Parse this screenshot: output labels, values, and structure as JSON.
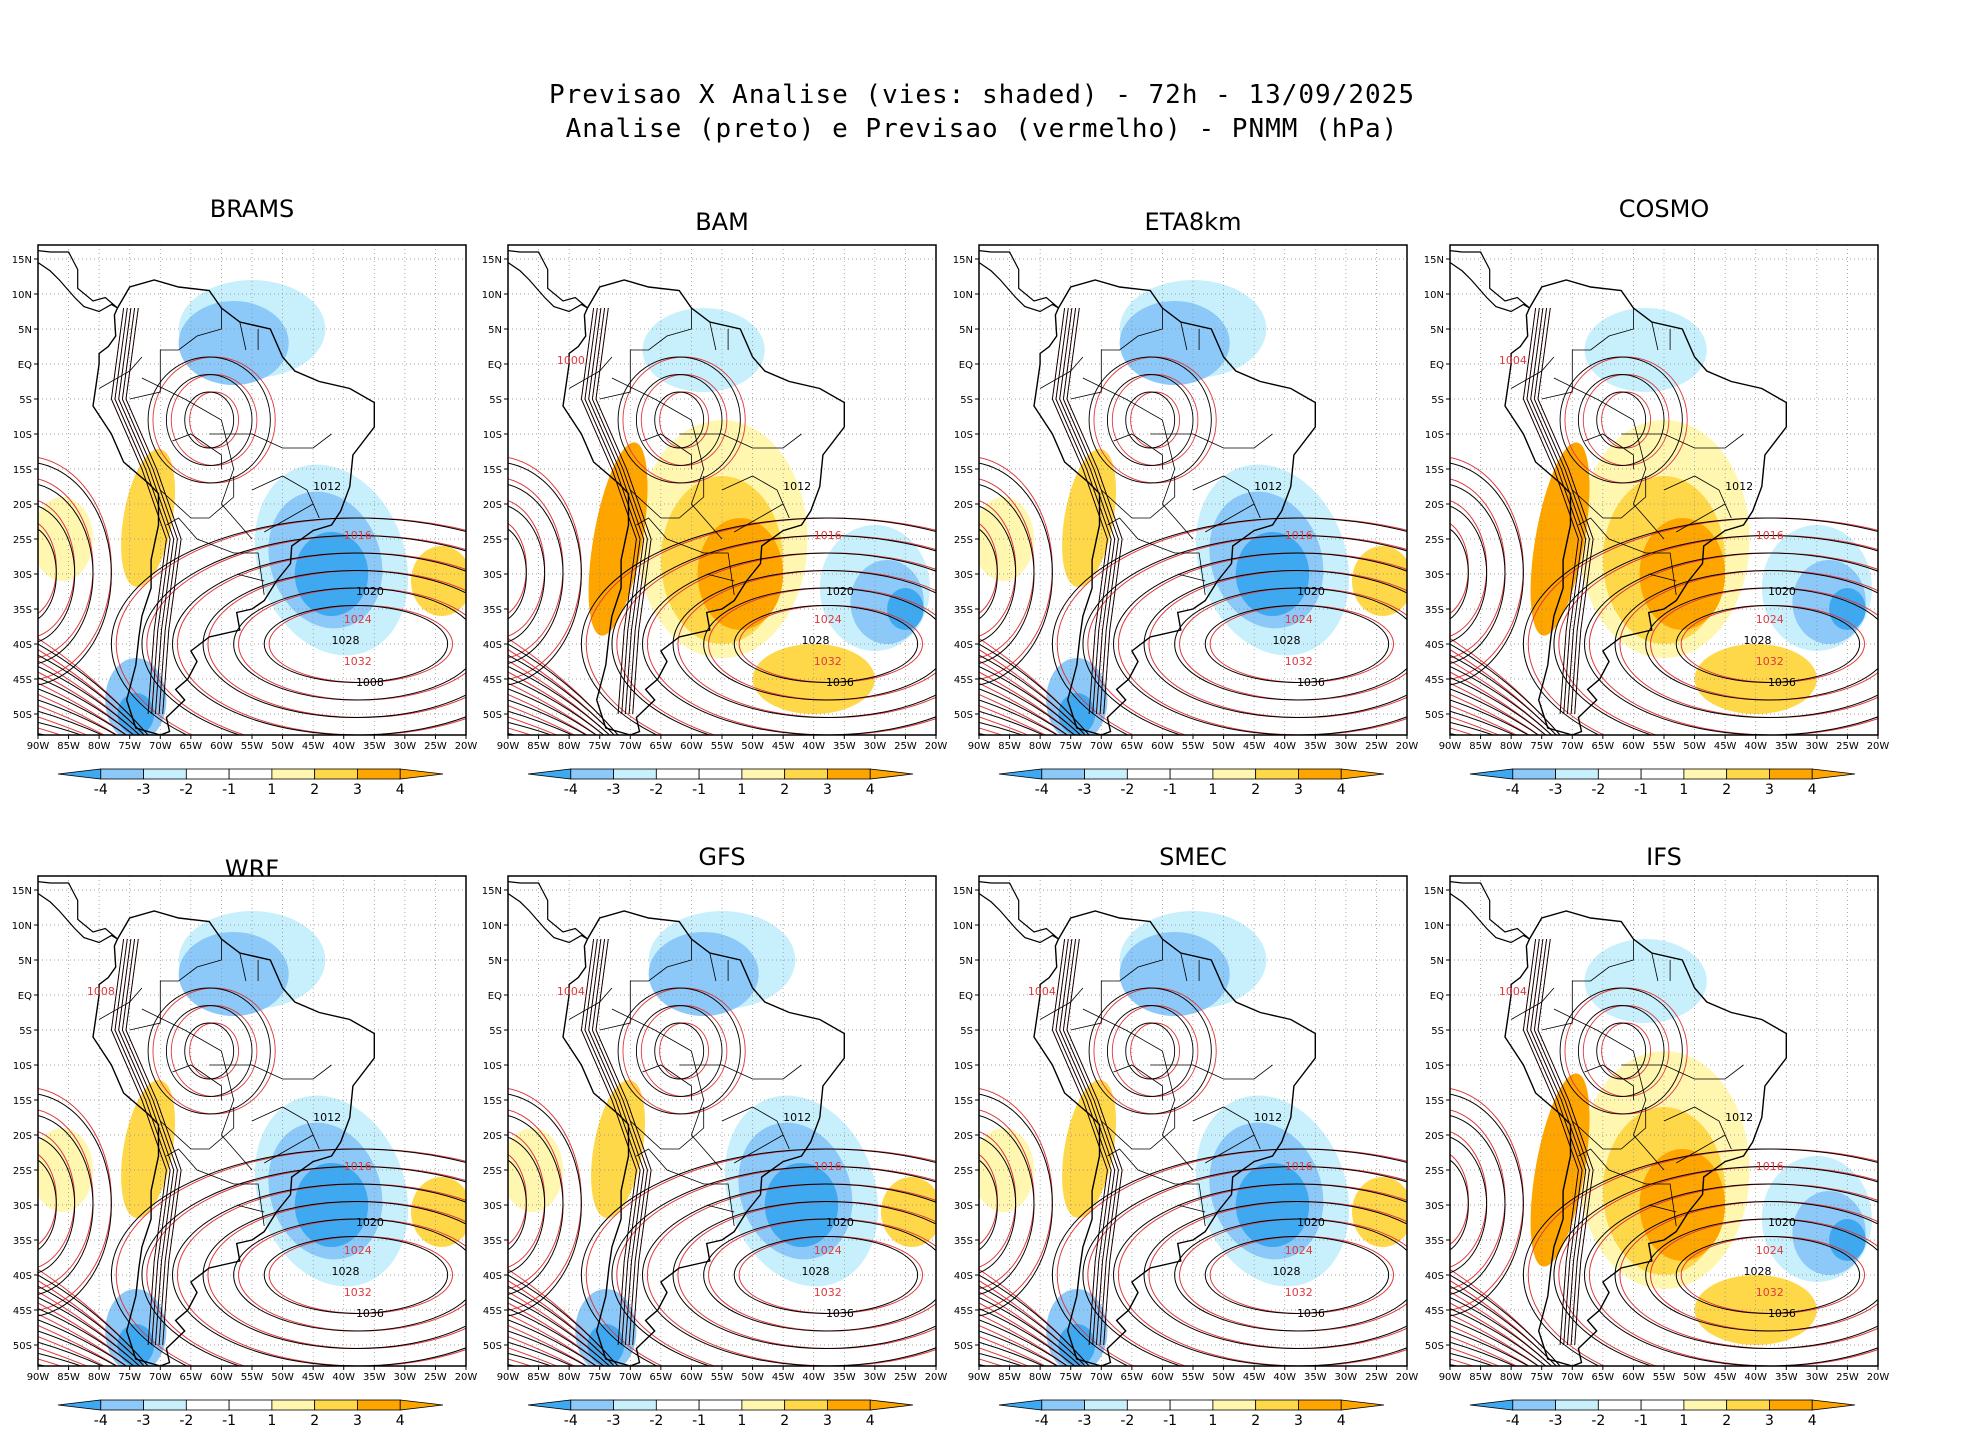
{
  "figure": {
    "title_line1": "Previsao X Analise (vies: shaded) - 72h - 13/09/2025",
    "title_line2": "Analise (preto) e Previsao (vermelho) - PNMM (hPa)"
  },
  "colors": {
    "analysis_contour": "#000000",
    "forecast_contour": "#e0393e",
    "bias_neg_strong": "#3ea8f0",
    "bias_neg_mid": "#8cc8f8",
    "bias_neg_weak": "#c8f0fc",
    "bias_neutral": "#ffffff",
    "bias_pos_weak": "#fff7b0",
    "bias_pos_mid": "#ffd84a",
    "bias_pos_strong": "#ffa500"
  },
  "map_axes": {
    "lon_labels": [
      "90W",
      "85W",
      "80W",
      "75W",
      "70W",
      "65W",
      "60W",
      "55W",
      "50W",
      "45W",
      "40W",
      "35W",
      "30W",
      "25W",
      "20W"
    ],
    "lat_labels": [
      "15N",
      "10N",
      "5N",
      "EQ",
      "5S",
      "10S",
      "15S",
      "20S",
      "25S",
      "30S",
      "35S",
      "40S",
      "45S",
      "50S"
    ]
  },
  "colorbar": {
    "labels": [
      "-4",
      "-3",
      "-2",
      "-1",
      "1",
      "2",
      "3",
      "4"
    ]
  },
  "panels": [
    {
      "model": "BRAMS",
      "bias": "neg",
      "contours": [
        "1012",
        "1016",
        "1020",
        "1024",
        "1028",
        "1032",
        "1008"
      ]
    },
    {
      "model": "BAM",
      "bias": "pos",
      "contours": [
        "1012",
        "1016",
        "1020",
        "1024",
        "1028",
        "1032",
        "1036",
        "1000"
      ]
    },
    {
      "model": "ETA8km",
      "bias": "neg",
      "contours": [
        "1012",
        "1016",
        "1020",
        "1024",
        "1028",
        "1032",
        "1036"
      ]
    },
    {
      "model": "COSMO",
      "bias": "pos",
      "contours": [
        "1012",
        "1016",
        "1020",
        "1024",
        "1028",
        "1032",
        "1036",
        "1004"
      ]
    },
    {
      "model": "WRF",
      "bias": "neg",
      "contours": [
        "1012",
        "1016",
        "1020",
        "1024",
        "1028",
        "1032",
        "1036",
        "1008"
      ]
    },
    {
      "model": "GFS",
      "bias": "neg",
      "contours": [
        "1012",
        "1016",
        "1020",
        "1024",
        "1028",
        "1032",
        "1036",
        "1004"
      ]
    },
    {
      "model": "SMEC",
      "bias": "neg",
      "contours": [
        "1012",
        "1016",
        "1020",
        "1024",
        "1028",
        "1032",
        "1036",
        "1004"
      ]
    },
    {
      "model": "IFS",
      "bias": "pos",
      "contours": [
        "1012",
        "1016",
        "1020",
        "1024",
        "1028",
        "1032",
        "1036",
        "1004"
      ]
    }
  ]
}
